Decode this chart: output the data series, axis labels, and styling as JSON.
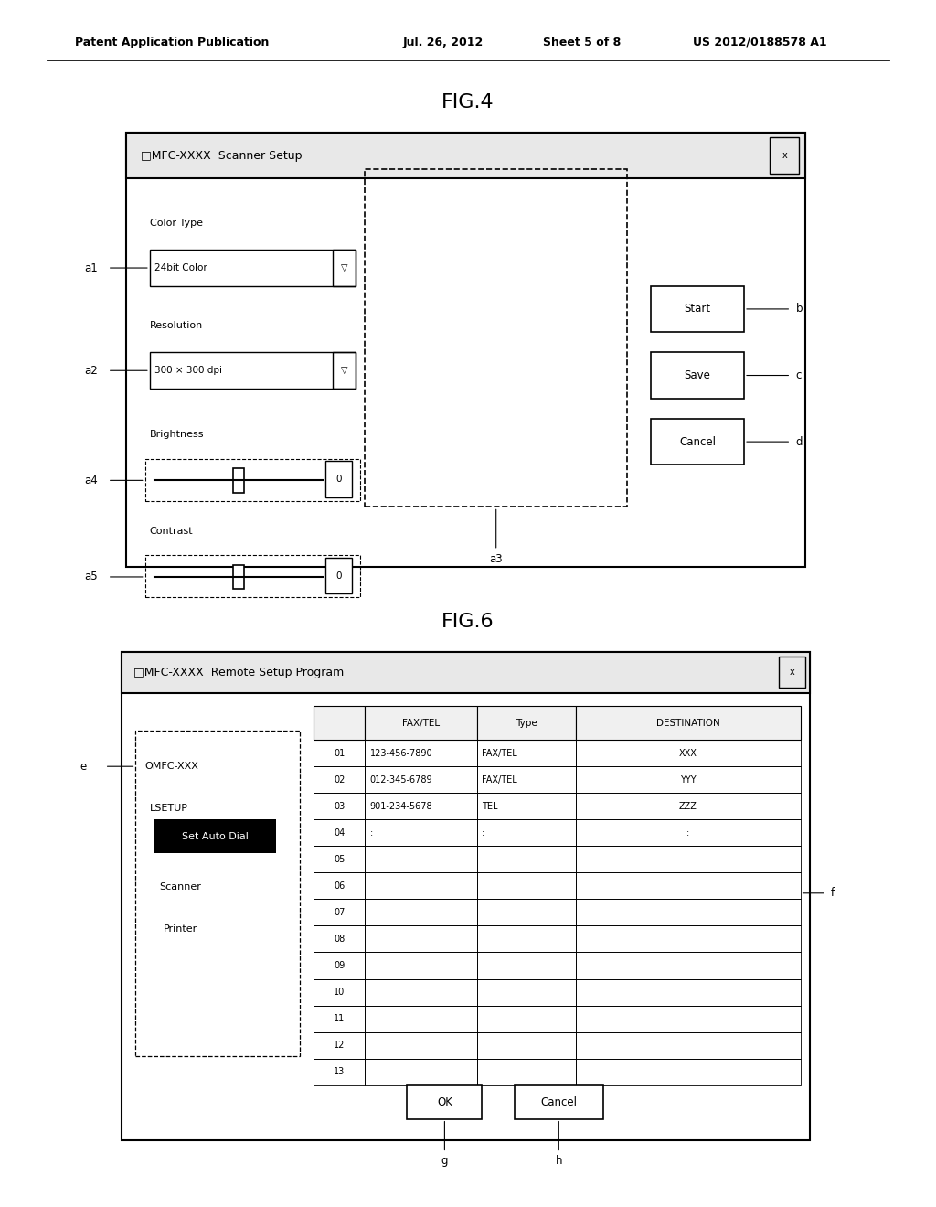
{
  "bg_color": "#ffffff",
  "header_text": "Patent Application Publication",
  "header_date": "Jul. 26, 2012",
  "header_sheet": "Sheet 5 of 8",
  "header_patent": "US 2012/0188578 A1",
  "fig4_title": "FIG.4",
  "fig6_title": "FIG.6",
  "fig4_window_title": "□MFC-XXXX  Scanner Setup",
  "fig6_window_title": "□MFC-XXXX  Remote Setup Program",
  "fig4": {
    "color_type_label": "Color Type",
    "color_type_value": "24bit Color",
    "resolution_label": "Resolution",
    "resolution_value": "300 × 300 dpi",
    "brightness_label": "Brightness",
    "contrast_label": "Contrast",
    "buttons": [
      "Start",
      "Save",
      "Cancel"
    ],
    "labels_left": [
      "a1",
      "a2",
      "a4",
      "a5"
    ],
    "labels_right": [
      "b",
      "c",
      "d"
    ],
    "a3_label": "a3"
  },
  "fig6": {
    "tree_items": [
      "OMFC-XXX",
      "LSETUP",
      "Set Auto Dial",
      "Scanner",
      "Printer"
    ],
    "table_headers": [
      "",
      "FAX/TEL",
      "Type",
      "DESTINATION"
    ],
    "table_rows": [
      [
        "01",
        "123-456-7890",
        "FAX/TEL",
        "XXX"
      ],
      [
        "02",
        "012-345-6789",
        "FAX/TEL",
        "YYY"
      ],
      [
        "03",
        "901-234-5678",
        "TEL",
        "ZZZ"
      ],
      [
        "04",
        ":",
        ":",
        ":"
      ],
      [
        "05",
        "",
        "",
        ""
      ],
      [
        "06",
        "",
        "",
        ""
      ],
      [
        "07",
        "",
        "",
        ""
      ],
      [
        "08",
        "",
        "",
        ""
      ],
      [
        "09",
        "",
        "",
        ""
      ],
      [
        "10",
        "",
        "",
        ""
      ],
      [
        "11",
        "",
        "",
        ""
      ],
      [
        "12",
        "",
        "",
        ""
      ],
      [
        "13",
        "",
        "",
        ""
      ]
    ],
    "buttons": [
      "OK",
      "Cancel"
    ],
    "label_e": "e",
    "label_f": "f",
    "label_g": "g",
    "label_h": "h"
  }
}
